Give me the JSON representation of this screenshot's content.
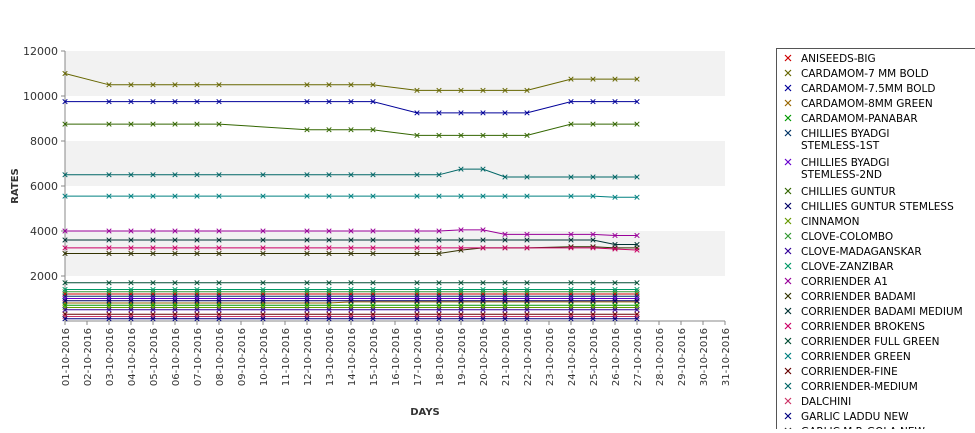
{
  "chart_data": {
    "type": "line",
    "title": "",
    "xlabel": "DAYS",
    "ylabel": "RATES",
    "ylim": [
      0,
      12000
    ],
    "yticks": [
      2000,
      4000,
      6000,
      8000,
      10000,
      12000
    ],
    "grid": "horizontal alternating bands",
    "legend_position": "right",
    "categories": [
      "01-10-2016",
      "02-10-2016",
      "03-10-2016",
      "04-10-2016",
      "05-10-2016",
      "06-10-2016",
      "07-10-2016",
      "08-10-2016",
      "09-10-2016",
      "10-10-2016",
      "11-10-2016",
      "12-10-2016",
      "13-10-2016",
      "14-10-2016",
      "15-10-2016",
      "16-10-2016",
      "17-10-2016",
      "18-10-2016",
      "19-10-2016",
      "20-10-2016",
      "21-10-2016",
      "22-10-2016",
      "23-10-2016",
      "24-10-2016",
      "25-10-2016",
      "26-10-2016",
      "27-10-2016",
      "28-10-2016",
      "29-10-2016",
      "30-10-2016",
      "31-10-2016"
    ],
    "series": [
      {
        "name": "ANISEEDS-BIG",
        "color": "#cc0000",
        "values": [
          1200,
          null,
          1200,
          1200,
          1200,
          1200,
          1200,
          1200,
          null,
          1200,
          null,
          1200,
          1200,
          1200,
          1200,
          null,
          1200,
          1200,
          1200,
          1200,
          1200,
          1200,
          null,
          1200,
          1200,
          1200,
          1200,
          null,
          null,
          null,
          null
        ]
      },
      {
        "name": "CARDAMOM-7 MM BOLD",
        "color": "#666600",
        "values": [
          11000,
          null,
          10500,
          10500,
          10500,
          10500,
          10500,
          10500,
          null,
          null,
          null,
          10500,
          10500,
          10500,
          10500,
          null,
          10250,
          10250,
          10250,
          10250,
          10250,
          10250,
          null,
          10750,
          10750,
          10750,
          10750,
          null,
          null,
          null,
          null
        ]
      },
      {
        "name": "CARDAMOM-7.5MM BOLD",
        "color": "#000099",
        "values": [
          9750,
          null,
          9750,
          9750,
          9750,
          9750,
          9750,
          9750,
          null,
          null,
          null,
          9750,
          9750,
          9750,
          9750,
          null,
          9250,
          9250,
          9250,
          9250,
          9250,
          9250,
          null,
          9750,
          9750,
          9750,
          9750,
          null,
          null,
          null,
          null
        ]
      },
      {
        "name": "CARDAMOM-8MM GREEN",
        "color": "#996600",
        "values": [
          800,
          null,
          800,
          800,
          800,
          800,
          800,
          800,
          null,
          800,
          null,
          800,
          800,
          850,
          850,
          null,
          850,
          850,
          850,
          850,
          850,
          850,
          null,
          850,
          850,
          850,
          850,
          null,
          null,
          null,
          null
        ]
      },
      {
        "name": "CARDAMOM-PANABAR",
        "color": "#009900",
        "values": [
          700,
          null,
          700,
          700,
          700,
          700,
          700,
          700,
          null,
          700,
          null,
          700,
          700,
          700,
          700,
          null,
          700,
          700,
          700,
          700,
          700,
          700,
          null,
          700,
          700,
          700,
          700,
          null,
          null,
          null,
          null
        ]
      },
      {
        "name": "CHILLIES BYADGI STEMLESS-1ST",
        "color": "#003366",
        "values": [
          1100,
          null,
          1100,
          1100,
          1100,
          1100,
          1100,
          1100,
          null,
          1100,
          null,
          1100,
          1100,
          1100,
          1100,
          null,
          1100,
          1100,
          1100,
          1100,
          1100,
          1100,
          null,
          1100,
          1100,
          1100,
          1100,
          null,
          null,
          null,
          null
        ]
      },
      {
        "name": "CHILLIES BYADGI STEMLESS-2ND",
        "color": "#6600cc",
        "values": [
          1000,
          null,
          1000,
          1000,
          1000,
          1000,
          1000,
          1000,
          null,
          1000,
          null,
          1000,
          1000,
          1000,
          1000,
          null,
          1000,
          1000,
          1000,
          1000,
          1000,
          1000,
          null,
          1000,
          1000,
          1000,
          1000,
          null,
          null,
          null,
          null
        ]
      },
      {
        "name": "CHILLIES GUNTUR",
        "color": "#336600",
        "values": [
          8750,
          null,
          8750,
          8750,
          8750,
          8750,
          8750,
          8750,
          null,
          null,
          null,
          8500,
          8500,
          8500,
          8500,
          null,
          8250,
          8250,
          8250,
          8250,
          8250,
          8250,
          null,
          8750,
          8750,
          8750,
          8750,
          null,
          null,
          null,
          null
        ]
      },
      {
        "name": "CHILLIES GUNTUR STEMLESS",
        "color": "#000066",
        "values": [
          900,
          null,
          900,
          900,
          900,
          900,
          900,
          900,
          null,
          900,
          null,
          900,
          900,
          900,
          900,
          null,
          900,
          900,
          900,
          900,
          900,
          900,
          null,
          900,
          900,
          900,
          900,
          null,
          null,
          null,
          null
        ]
      },
      {
        "name": "CINNAMON",
        "color": "#669900",
        "values": [
          600,
          null,
          600,
          600,
          600,
          600,
          600,
          600,
          null,
          600,
          null,
          600,
          600,
          600,
          600,
          null,
          600,
          600,
          600,
          600,
          600,
          600,
          null,
          600,
          600,
          600,
          600,
          null,
          null,
          null,
          null
        ]
      },
      {
        "name": "CLOVE-COLOMBO",
        "color": "#339933",
        "values": [
          1300,
          null,
          1300,
          1300,
          1300,
          1300,
          1300,
          1300,
          null,
          1300,
          null,
          1300,
          1300,
          1300,
          1300,
          null,
          1300,
          1300,
          1300,
          1300,
          1300,
          1300,
          null,
          1300,
          1300,
          1300,
          1300,
          null,
          null,
          null,
          null
        ]
      },
      {
        "name": "CLOVE-MADAGANSKAR",
        "color": "#330099",
        "values": [
          500,
          null,
          500,
          500,
          500,
          500,
          500,
          500,
          null,
          500,
          null,
          500,
          500,
          500,
          500,
          null,
          500,
          500,
          500,
          500,
          500,
          500,
          null,
          500,
          500,
          500,
          500,
          null,
          null,
          null,
          null
        ]
      },
      {
        "name": "CLOVE-ZANZIBAR",
        "color": "#009966",
        "values": [
          1400,
          null,
          1400,
          1400,
          1400,
          1400,
          1400,
          1400,
          null,
          1400,
          null,
          1400,
          1400,
          1400,
          1400,
          null,
          1400,
          1400,
          1400,
          1400,
          1400,
          1400,
          null,
          1400,
          1400,
          1400,
          1400,
          null,
          null,
          null,
          null
        ]
      },
      {
        "name": "CORRIENDER A1",
        "color": "#990099",
        "values": [
          4000,
          null,
          4000,
          4000,
          4000,
          4000,
          4000,
          4000,
          null,
          4000,
          null,
          4000,
          4000,
          4000,
          4000,
          null,
          4000,
          4000,
          4050,
          4050,
          3850,
          3850,
          null,
          3850,
          3850,
          3800,
          3800,
          null,
          null,
          null,
          null
        ]
      },
      {
        "name": "CORRIENDER BADAMI",
        "color": "#333300",
        "values": [
          3000,
          null,
          3000,
          3000,
          3000,
          3000,
          3000,
          3000,
          null,
          3000,
          null,
          3000,
          3000,
          3000,
          3000,
          null,
          3000,
          3000,
          3150,
          3250,
          3250,
          3250,
          null,
          3300,
          3300,
          3250,
          3250,
          null,
          null,
          null,
          null
        ]
      },
      {
        "name": "CORRIENDER BADAMI MEDIUM",
        "color": "#003333",
        "values": [
          3600,
          null,
          3600,
          3600,
          3600,
          3600,
          3600,
          3600,
          null,
          3600,
          null,
          3600,
          3600,
          3600,
          3600,
          null,
          3600,
          3600,
          3600,
          3600,
          3600,
          3600,
          null,
          3600,
          3600,
          3400,
          3400,
          null,
          null,
          null,
          null
        ]
      },
      {
        "name": "CORRIENDER BROKENS",
        "color": "#cc0066",
        "values": [
          3250,
          null,
          3250,
          3250,
          3250,
          3250,
          3250,
          3250,
          null,
          3250,
          null,
          3250,
          3250,
          3250,
          3250,
          null,
          3250,
          3250,
          3250,
          3250,
          3250,
          3250,
          null,
          3250,
          3250,
          3200,
          3150,
          null,
          null,
          null,
          null
        ]
      },
      {
        "name": "CORRIENDER FULL GREEN",
        "color": "#004d33",
        "values": [
          1700,
          null,
          1700,
          1700,
          1700,
          1700,
          1700,
          1700,
          null,
          1700,
          null,
          1700,
          1700,
          1700,
          1700,
          null,
          1700,
          1700,
          1700,
          1700,
          1700,
          1700,
          null,
          1700,
          1700,
          1700,
          1700,
          null,
          null,
          null,
          null
        ]
      },
      {
        "name": "CORRIENDER GREEN",
        "color": "#008080",
        "values": [
          5550,
          null,
          5550,
          5550,
          5550,
          5550,
          5550,
          5550,
          null,
          5550,
          null,
          5550,
          5550,
          5550,
          5550,
          null,
          5550,
          5550,
          5550,
          5550,
          5550,
          5550,
          null,
          5550,
          5550,
          5500,
          5500,
          null,
          null,
          null,
          null
        ]
      },
      {
        "name": "CORRIENDER-FINE",
        "color": "#660000",
        "values": [
          300,
          null,
          300,
          300,
          300,
          300,
          300,
          300,
          null,
          300,
          null,
          300,
          300,
          300,
          300,
          null,
          300,
          300,
          300,
          300,
          300,
          300,
          null,
          300,
          300,
          300,
          300,
          null,
          null,
          null,
          null
        ]
      },
      {
        "name": "CORRIENDER-MEDIUM",
        "color": "#006666",
        "values": [
          6500,
          null,
          6500,
          6500,
          6500,
          6500,
          6500,
          6500,
          null,
          6500,
          null,
          6500,
          6500,
          6500,
          6500,
          null,
          6500,
          6500,
          6750,
          6750,
          6400,
          6400,
          null,
          6400,
          6400,
          6400,
          6400,
          null,
          null,
          null,
          null
        ]
      },
      {
        "name": "DALCHINI",
        "color": "#cc3366",
        "values": [
          200,
          null,
          200,
          200,
          200,
          200,
          200,
          200,
          null,
          200,
          null,
          200,
          200,
          200,
          200,
          null,
          200,
          200,
          200,
          200,
          200,
          200,
          null,
          200,
          200,
          200,
          200,
          null,
          null,
          null,
          null
        ]
      },
      {
        "name": "GARLIC LADDU NEW",
        "color": "#000080",
        "values": [
          100,
          null,
          100,
          100,
          100,
          100,
          100,
          100,
          null,
          100,
          null,
          100,
          100,
          100,
          100,
          null,
          100,
          100,
          100,
          100,
          100,
          100,
          null,
          100,
          100,
          100,
          100,
          null,
          null,
          null,
          null
        ]
      }
    ],
    "legend_cutoff_text": "GARLIC M.P. GOLA NEW"
  }
}
